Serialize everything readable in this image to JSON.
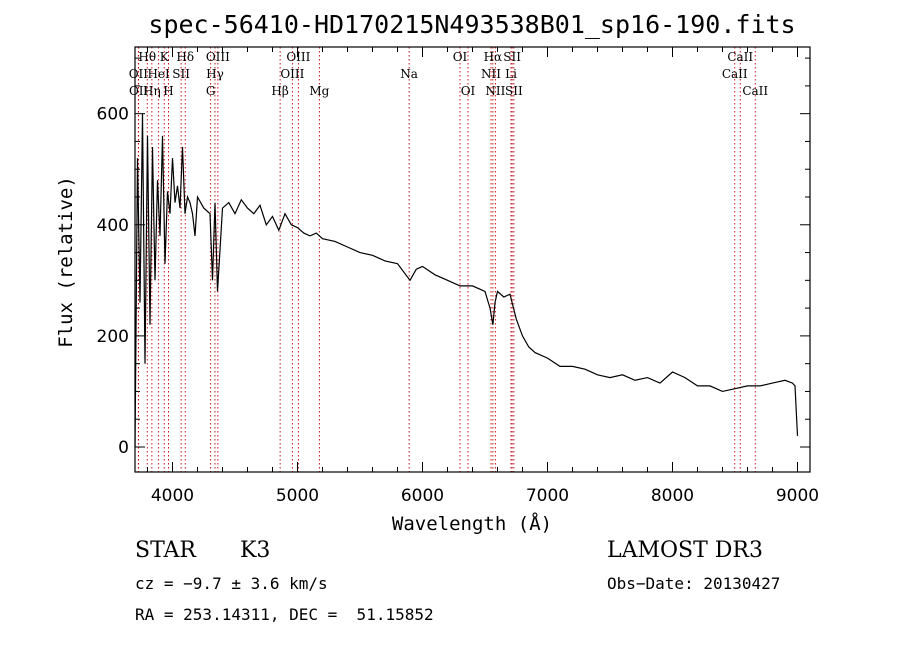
{
  "chart_data": {
    "type": "line",
    "title": "spec-56410-HD170215N493538B01_sp16-190.fits",
    "xlabel": "Wavelength (Å)",
    "ylabel": "Flux (relative)",
    "xlim": [
      3700,
      9100
    ],
    "ylim": [
      -45,
      720
    ],
    "xticks": [
      4000,
      5000,
      6000,
      7000,
      8000,
      9000
    ],
    "yticks": [
      0,
      200,
      400,
      600
    ],
    "grid": false,
    "series": [
      {
        "name": "flux",
        "x": [
          3700,
          3720,
          3740,
          3760,
          3780,
          3800,
          3820,
          3840,
          3860,
          3880,
          3900,
          3920,
          3940,
          3960,
          3980,
          4000,
          4020,
          4040,
          4060,
          4080,
          4100,
          4120,
          4140,
          4160,
          4180,
          4200,
          4250,
          4300,
          4320,
          4340,
          4360,
          4400,
          4450,
          4500,
          4550,
          4600,
          4650,
          4700,
          4750,
          4800,
          4850,
          4900,
          4950,
          5000,
          5050,
          5100,
          5150,
          5200,
          5300,
          5400,
          5500,
          5600,
          5700,
          5800,
          5900,
          5950,
          6000,
          6100,
          6200,
          6300,
          6400,
          6500,
          6540,
          6563,
          6580,
          6600,
          6650,
          6700,
          6750,
          6800,
          6850,
          6900,
          7000,
          7100,
          7200,
          7300,
          7400,
          7500,
          7600,
          7700,
          7800,
          7900,
          8000,
          8100,
          8200,
          8300,
          8400,
          8500,
          8600,
          8700,
          8800,
          8900,
          8960,
          8980,
          9000
        ],
        "y": [
          0,
          520,
          260,
          600,
          150,
          560,
          220,
          540,
          300,
          480,
          380,
          560,
          330,
          460,
          420,
          520,
          440,
          470,
          430,
          540,
          420,
          450,
          440,
          420,
          380,
          450,
          430,
          420,
          300,
          440,
          280,
          430,
          440,
          420,
          445,
          430,
          420,
          435,
          400,
          415,
          390,
          420,
          400,
          395,
          385,
          380,
          385,
          375,
          370,
          360,
          350,
          345,
          335,
          330,
          300,
          320,
          325,
          310,
          300,
          290,
          290,
          280,
          250,
          220,
          260,
          280,
          270,
          275,
          230,
          200,
          180,
          170,
          160,
          145,
          145,
          140,
          130,
          125,
          130,
          120,
          125,
          115,
          135,
          125,
          110,
          110,
          100,
          105,
          110,
          110,
          115,
          120,
          115,
          110,
          20
        ]
      }
    ],
    "lines": [
      {
        "name": "Hθ",
        "x": 3798,
        "tier": 0
      },
      {
        "name": "OII",
        "x": 3727,
        "tier": 1
      },
      {
        "name": "OII",
        "x": 3729,
        "tier": 2
      },
      {
        "name": "Hη",
        "x": 3835,
        "tier": 2
      },
      {
        "name": "HeI",
        "x": 3889,
        "tier": 1
      },
      {
        "name": "K",
        "x": 3934,
        "tier": 0
      },
      {
        "name": "H",
        "x": 3968,
        "tier": 2
      },
      {
        "name": "Hδ",
        "x": 4102,
        "tier": 0
      },
      {
        "name": "SII",
        "x": 4069,
        "tier": 1
      },
      {
        "name": "OIII",
        "x": 4363,
        "tier": 0
      },
      {
        "name": "Hγ",
        "x": 4340,
        "tier": 1
      },
      {
        "name": "G",
        "x": 4305,
        "tier": 2
      },
      {
        "name": "OIII",
        "x": 5007,
        "tier": 0
      },
      {
        "name": "OIII",
        "x": 4959,
        "tier": 1
      },
      {
        "name": "Hβ",
        "x": 4861,
        "tier": 2
      },
      {
        "name": "Mg",
        "x": 5175,
        "tier": 2
      },
      {
        "name": "Na",
        "x": 5893,
        "tier": 1
      },
      {
        "name": "OI",
        "x": 6300,
        "tier": 0
      },
      {
        "name": "OI",
        "x": 6364,
        "tier": 2
      },
      {
        "name": "Hα",
        "x": 6563,
        "tier": 0
      },
      {
        "name": "SII",
        "x": 6717,
        "tier": 0
      },
      {
        "name": "NII",
        "x": 6548,
        "tier": 1
      },
      {
        "name": "Li",
        "x": 6708,
        "tier": 1
      },
      {
        "name": "NII",
        "x": 6583,
        "tier": 2
      },
      {
        "name": "SII",
        "x": 6731,
        "tier": 2
      },
      {
        "name": "CaII",
        "x": 8542,
        "tier": 0
      },
      {
        "name": "CaII",
        "x": 8498,
        "tier": 1
      },
      {
        "name": "CaII",
        "x": 8662,
        "tier": 2
      }
    ]
  },
  "info": {
    "class_label": "STAR",
    "subclass": "K3",
    "survey": "LAMOST DR3",
    "cz": "cz = −9.7 ± 3.6 km/s",
    "obs_date": "Obs−Date: 20130427",
    "coords": "RA = 253.14311, DEC =  51.15852"
  },
  "colors": {
    "spectrum": "#000000",
    "line_markers": "#c00000",
    "axes": "#000000"
  }
}
